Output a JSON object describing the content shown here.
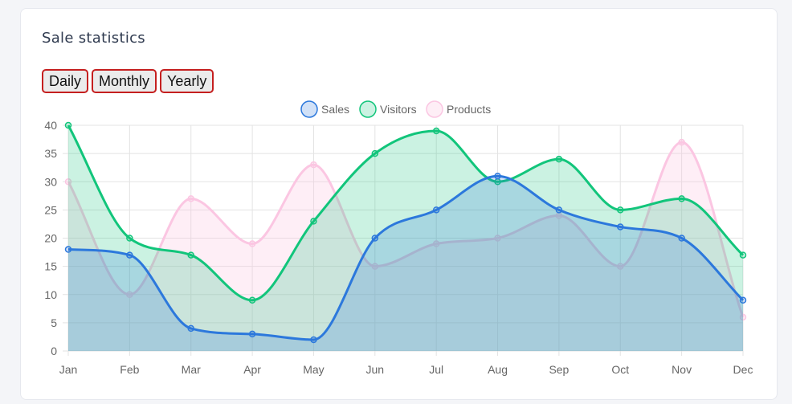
{
  "card": {
    "title": "Sale statistics"
  },
  "toolbar": {
    "buttons": [
      "Daily",
      "Monthly",
      "Yearly"
    ]
  },
  "chart_data": {
    "type": "area",
    "categories": [
      "Jan",
      "Feb",
      "Mar",
      "Apr",
      "May",
      "Jun",
      "Jul",
      "Aug",
      "Sep",
      "Oct",
      "Nov",
      "Dec"
    ],
    "ylim": [
      0,
      40
    ],
    "yticks": [
      "0",
      "5",
      "10",
      "15",
      "20",
      "25",
      "30",
      "35",
      "40"
    ],
    "legend_position": "top-center",
    "grid": true,
    "series": [
      {
        "name": "Sales",
        "color": "#2c78dc",
        "fill": "rgba(44,120,220,0.22)",
        "values": [
          18,
          17,
          4,
          3,
          2,
          20,
          25,
          31,
          25,
          22,
          20,
          9
        ]
      },
      {
        "name": "Visitors",
        "color": "#12c57b",
        "fill": "rgba(18,197,123,0.22)",
        "values": [
          40,
          20,
          17,
          9,
          23,
          35,
          39,
          30,
          34,
          25,
          27,
          17
        ]
      },
      {
        "name": "Products",
        "color": "#fbc6e2",
        "fill": "rgba(251,198,226,0.30)",
        "values": [
          30,
          10,
          27,
          19,
          33,
          15,
          19,
          20,
          24,
          15,
          37,
          6
        ]
      }
    ]
  }
}
